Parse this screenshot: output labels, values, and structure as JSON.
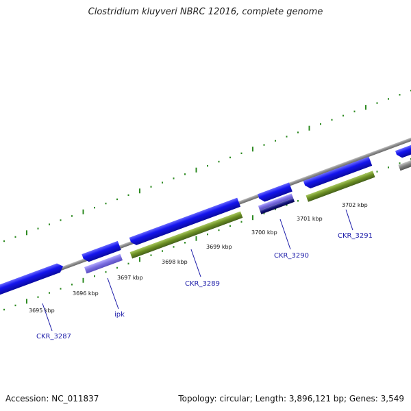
{
  "title": "Clostridium kluyveri NBRC 12016, complete genome",
  "footer": {
    "accession": "Accession: NC_011837",
    "stats": "Topology: circular; Length: 3,896,121 bp; Genes: 3,549"
  },
  "kbp_labels": [
    "3695 kbp",
    "3696 kbp",
    "3697 kbp",
    "3698 kbp",
    "3699 kbp",
    "3700 kbp",
    "3701 kbp",
    "3702 kbp"
  ],
  "gene_labels": [
    "CKR_3287",
    "ipk",
    "CKR_3289",
    "CKR_3290",
    "CKR_3291"
  ],
  "colors": {
    "cds_blue": "#1010e0",
    "cds_lavender": "#7a6ee0",
    "cds_navy": "#10107a",
    "gene_green": "#6b8e23",
    "gene_gray": "#808080",
    "tick_green": "#2e8b22",
    "axis_gray": "#9a9a9a",
    "label_blue": "#1a1aa8"
  }
}
